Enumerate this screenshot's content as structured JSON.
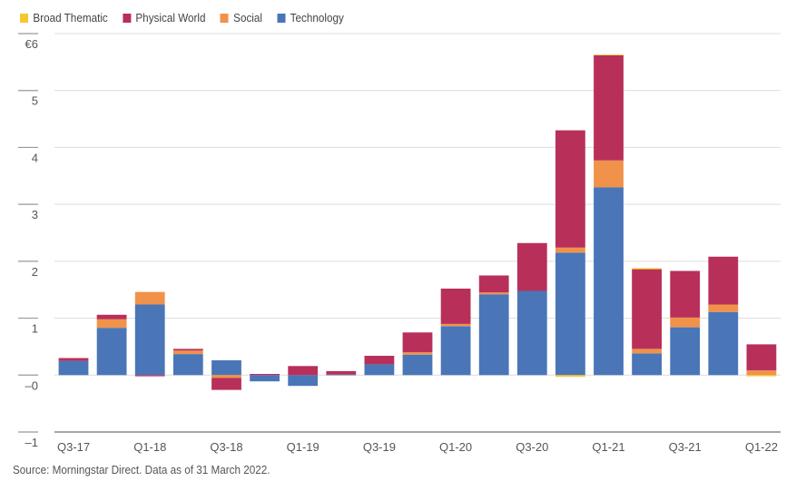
{
  "chart_data": {
    "type": "bar",
    "stacked": true,
    "title": "",
    "xlabel": "",
    "ylabel": "",
    "ylim": [
      -1,
      6
    ],
    "y_ticks": [
      {
        "value": 6,
        "label": "€6"
      },
      {
        "value": 5,
        "label": "5"
      },
      {
        "value": 4,
        "label": "4"
      },
      {
        "value": 3,
        "label": "3"
      },
      {
        "value": 2,
        "label": "2"
      },
      {
        "value": 1,
        "label": "1"
      },
      {
        "value": 0,
        "label": "–0"
      },
      {
        "value": -1,
        "label": "–1"
      }
    ],
    "grid": true,
    "legend_position": "top-left",
    "categories": [
      "Q3-17",
      "Q4-17",
      "Q1-18",
      "Q2-18",
      "Q3-18",
      "Q4-18",
      "Q1-19",
      "Q2-19",
      "Q3-19",
      "Q4-19",
      "Q1-20",
      "Q2-20",
      "Q3-20",
      "Q4-20",
      "Q1-21",
      "Q2-21",
      "Q3-21",
      "Q4-21",
      "Q1-22"
    ],
    "x_tick_labels": [
      "Q3-17",
      "",
      "Q1-18",
      "",
      "Q3-18",
      "",
      "Q1-19",
      "",
      "Q3-19",
      "",
      "Q1-20",
      "",
      "Q3-20",
      "",
      "Q1-21",
      "",
      "Q3-21",
      "",
      "Q1-22"
    ],
    "series": [
      {
        "name": "Technology",
        "color": "#4a76b8",
        "values": [
          0.25,
          0.83,
          1.24,
          0.37,
          0.26,
          -0.11,
          -0.19,
          0.01,
          0.19,
          0.36,
          0.86,
          1.42,
          1.48,
          2.15,
          3.3,
          0.38,
          0.84,
          1.11,
          0.0
        ]
      },
      {
        "name": "Social",
        "color": "#f0924a",
        "values": [
          0.0,
          0.15,
          0.22,
          0.06,
          -0.05,
          0.0,
          0.0,
          0.0,
          0.0,
          0.04,
          0.04,
          0.03,
          0.0,
          0.09,
          0.47,
          0.08,
          0.17,
          0.13,
          0.08
        ]
      },
      {
        "name": "Physical World",
        "color": "#b8305a",
        "values": [
          0.05,
          0.08,
          -0.02,
          0.03,
          -0.21,
          0.02,
          0.16,
          0.06,
          0.15,
          0.35,
          0.62,
          0.3,
          0.84,
          2.06,
          1.85,
          1.4,
          0.82,
          0.84,
          0.46
        ]
      },
      {
        "name": "Broad Thematic",
        "color": "#f5c92e",
        "values": [
          0,
          0,
          0,
          0,
          0,
          0,
          0,
          0,
          0,
          0,
          0,
          0,
          0,
          -0.03,
          0.01,
          0.02,
          0,
          0,
          -0.02
        ]
      }
    ],
    "legend_order": [
      "Broad Thematic",
      "Physical World",
      "Social",
      "Technology"
    ]
  },
  "footer": {
    "source": "Source: Morningstar Direct. Data as of 31 March 2022."
  }
}
